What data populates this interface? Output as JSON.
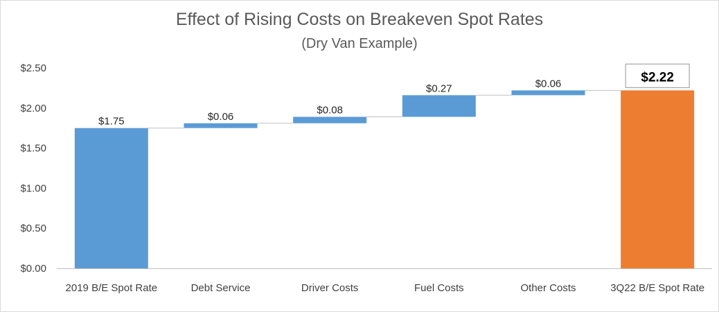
{
  "chart_data": {
    "type": "bar",
    "subtype": "waterfall",
    "title": "Effect of Rising Costs on Breakeven Spot Rates",
    "subtitle": "(Dry Van Example)",
    "categories": [
      "2019 B/E Spot Rate",
      "Debt Service",
      "Driver Costs",
      "Fuel Costs",
      "Other Costs",
      "3Q22 B/E Spot Rate"
    ],
    "steps": [
      {
        "category": "2019 B/E Spot Rate",
        "kind": "total",
        "value": 1.75,
        "label": "$1.75"
      },
      {
        "category": "Debt Service",
        "kind": "increase",
        "value": 0.06,
        "label": "$0.06"
      },
      {
        "category": "Driver Costs",
        "kind": "increase",
        "value": 0.08,
        "label": "$0.08"
      },
      {
        "category": "Fuel Costs",
        "kind": "increase",
        "value": 0.27,
        "label": "$0.27"
      },
      {
        "category": "Other Costs",
        "kind": "increase",
        "value": 0.06,
        "label": "$0.06"
      },
      {
        "category": "3Q22 B/E Spot Rate",
        "kind": "total",
        "value": 2.22,
        "label": "$2.22"
      }
    ],
    "yticks": [
      "$0.00",
      "$0.50",
      "$1.00",
      "$1.50",
      "$2.00",
      "$2.50"
    ],
    "ylim": [
      0,
      2.5
    ],
    "xlabel": "",
    "ylabel": "",
    "grid": false,
    "colors": {
      "increase": "#5b9bd5",
      "total_start": "#5b9bd5",
      "total_end": "#ed7d31",
      "connector": "#bfbfbf",
      "axis": "#bfbfbf"
    }
  }
}
